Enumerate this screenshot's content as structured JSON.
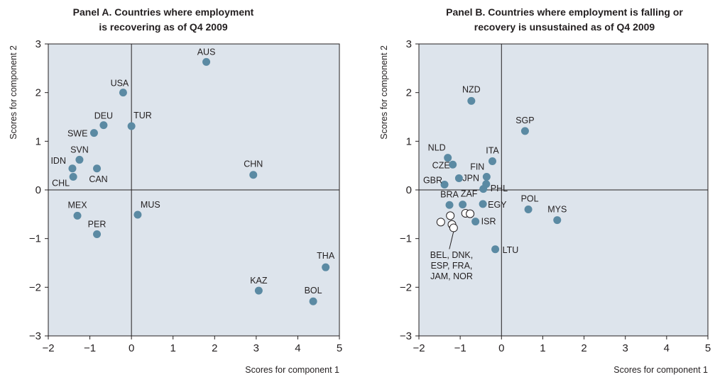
{
  "colors": {
    "plot_bg": "#dde4ec",
    "point_fill": "#5b8aa3",
    "open_point_fill": "#ffffff",
    "line": "#231f20"
  },
  "chart_data": [
    {
      "type": "scatter",
      "title_lines": [
        "Panel A.  Countries where employment",
        "is recovering as of Q4 2009"
      ],
      "xlabel": "Scores for component 1",
      "ylabel": "Scores for component 2",
      "xlim": [
        -2,
        5
      ],
      "ylim": [
        -3,
        3
      ],
      "xticks": [
        -2,
        -1,
        0,
        1,
        2,
        3,
        4,
        5
      ],
      "yticks": [
        -3,
        -2,
        -1,
        0,
        1,
        2,
        3
      ],
      "xtick_labels": [
        "−2",
        "−1",
        "0",
        "1",
        "2",
        "3",
        "4",
        "5"
      ],
      "ytick_labels": [
        "−3",
        "−2",
        "−1",
        "0",
        "1",
        "2",
        "3"
      ],
      "grid": false,
      "points": [
        {
          "label": "AUS",
          "x": 1.8,
          "y": 2.63
        },
        {
          "label": "USA",
          "x": -0.2,
          "y": 2.0
        },
        {
          "label": "DEU",
          "x": -0.67,
          "y": 1.33
        },
        {
          "label": "TUR",
          "x": 0.0,
          "y": 1.31
        },
        {
          "label": "SWE",
          "x": -0.9,
          "y": 1.17
        },
        {
          "label": "SVN",
          "x": -1.25,
          "y": 0.62
        },
        {
          "label": "IDN",
          "x": -1.42,
          "y": 0.44
        },
        {
          "label": "CAN",
          "x": -0.83,
          "y": 0.44
        },
        {
          "label": "CHL",
          "x": -1.4,
          "y": 0.27
        },
        {
          "label": "CHN",
          "x": 2.93,
          "y": 0.31
        },
        {
          "label": "MEX",
          "x": -1.3,
          "y": -0.53
        },
        {
          "label": "MUS",
          "x": 0.15,
          "y": -0.51
        },
        {
          "label": "PER",
          "x": -0.83,
          "y": -0.91
        },
        {
          "label": "THA",
          "x": 4.67,
          "y": -1.59
        },
        {
          "label": "KAZ",
          "x": 3.06,
          "y": -2.07
        },
        {
          "label": "BOL",
          "x": 4.37,
          "y": -2.29
        }
      ]
    },
    {
      "type": "scatter",
      "title_lines": [
        "Panel B.  Countries where employment is falling or",
        "recovery is unsustained as of Q4 2009"
      ],
      "xlabel": "Scores for component 1",
      "ylabel": "Scores for component 2",
      "xlim": [
        -2,
        5
      ],
      "ylim": [
        -3,
        3
      ],
      "xticks": [
        -2,
        -1,
        0,
        1,
        2,
        3,
        4,
        5
      ],
      "yticks": [
        -3,
        -2,
        -1,
        0,
        1,
        2,
        3
      ],
      "xtick_labels": [
        "−2",
        "−1",
        "0",
        "1",
        "2",
        "3",
        "4",
        "5"
      ],
      "ytick_labels": [
        "−3",
        "−2",
        "−1",
        "0",
        "1",
        "2",
        "3"
      ],
      "grid": false,
      "points": [
        {
          "label": "NZD",
          "x": -0.73,
          "y": 1.83
        },
        {
          "label": "SGP",
          "x": 0.57,
          "y": 1.21
        },
        {
          "label": "NLD",
          "x": -1.3,
          "y": 0.66
        },
        {
          "label": "ITA",
          "x": -0.22,
          "y": 0.59
        },
        {
          "label": "CZE",
          "x": -1.18,
          "y": 0.52
        },
        {
          "label": "FIN",
          "x": -0.36,
          "y": 0.27
        },
        {
          "label": "JPN",
          "x": -1.03,
          "y": 0.24
        },
        {
          "label": "GBR",
          "x": -1.38,
          "y": 0.11
        },
        {
          "label": "PHL",
          "x": -0.37,
          "y": 0.12
        },
        {
          "label": "",
          "x": -0.44,
          "y": 0.02
        },
        {
          "label": "BRA",
          "x": -1.26,
          "y": -0.31
        },
        {
          "label": "ZAF",
          "x": -0.94,
          "y": -0.3
        },
        {
          "label": "EGY",
          "x": -0.45,
          "y": -0.29
        },
        {
          "label": "POL",
          "x": 0.65,
          "y": -0.4
        },
        {
          "label": "MYS",
          "x": 1.35,
          "y": -0.62
        },
        {
          "label": "ISR",
          "x": -0.63,
          "y": -0.65
        },
        {
          "label": "LTU",
          "x": -0.15,
          "y": -1.22
        }
      ],
      "open_points": [
        {
          "x": -1.47,
          "y": -0.66
        },
        {
          "x": -1.24,
          "y": -0.53
        },
        {
          "x": -1.2,
          "y": -0.71
        },
        {
          "x": -1.16,
          "y": -0.78
        },
        {
          "x": -0.87,
          "y": -0.48
        },
        {
          "x": -0.76,
          "y": -0.49
        }
      ],
      "open_points_label": [
        "BEL, DNK,",
        "ESP, FRA,",
        "JAM, NOR"
      ]
    }
  ]
}
